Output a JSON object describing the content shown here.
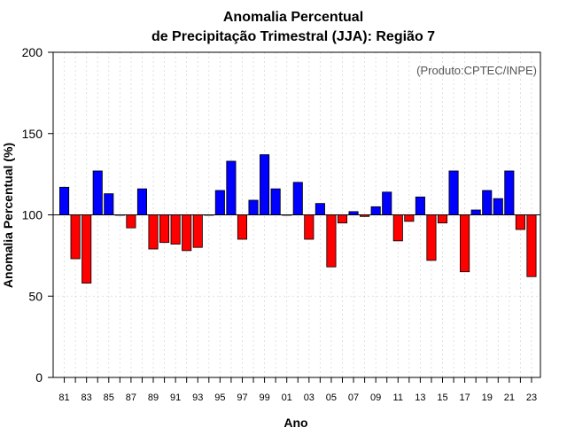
{
  "chart_data": {
    "type": "bar",
    "title_line1": "Anomalia Percentual",
    "title_line2": "de Precipitação Trimestral (JJA): Região 7",
    "ylabel": "Anomalia Percentual (%)",
    "xlabel": "Ano",
    "credit": "(Produto:CPTEC/INPE)",
    "ylim": [
      0,
      200
    ],
    "yticks": [
      0,
      50,
      100,
      150,
      200
    ],
    "baseline": 100,
    "grid": true,
    "colors": {
      "above": "#0000ff",
      "below": "#ff0000",
      "outline": "#000000",
      "grid": "#d8d8d8"
    },
    "categories": [
      "81",
      "82",
      "83",
      "84",
      "85",
      "86",
      "87",
      "88",
      "89",
      "90",
      "91",
      "92",
      "93",
      "94",
      "95",
      "96",
      "97",
      "98",
      "99",
      "00",
      "01",
      "02",
      "03",
      "04",
      "05",
      "06",
      "07",
      "08",
      "09",
      "10",
      "11",
      "12",
      "13",
      "14",
      "15",
      "16",
      "17",
      "18",
      "19",
      "20",
      "21",
      "22",
      "23"
    ],
    "tick_labels": [
      "81",
      "83",
      "85",
      "87",
      "89",
      "91",
      "93",
      "95",
      "97",
      "99",
      "01",
      "03",
      "05",
      "07",
      "09",
      "11",
      "13",
      "15",
      "17",
      "19",
      "21",
      "23"
    ],
    "values": [
      117,
      73,
      58,
      127,
      113,
      100,
      92,
      116,
      79,
      83,
      82,
      78,
      80,
      100,
      115,
      133,
      85,
      109,
      137,
      116,
      100,
      120,
      85,
      107,
      68,
      95,
      102,
      99,
      105,
      114,
      84,
      96,
      111,
      72,
      95,
      127,
      65,
      103,
      115,
      110,
      127,
      91,
      62
    ]
  }
}
